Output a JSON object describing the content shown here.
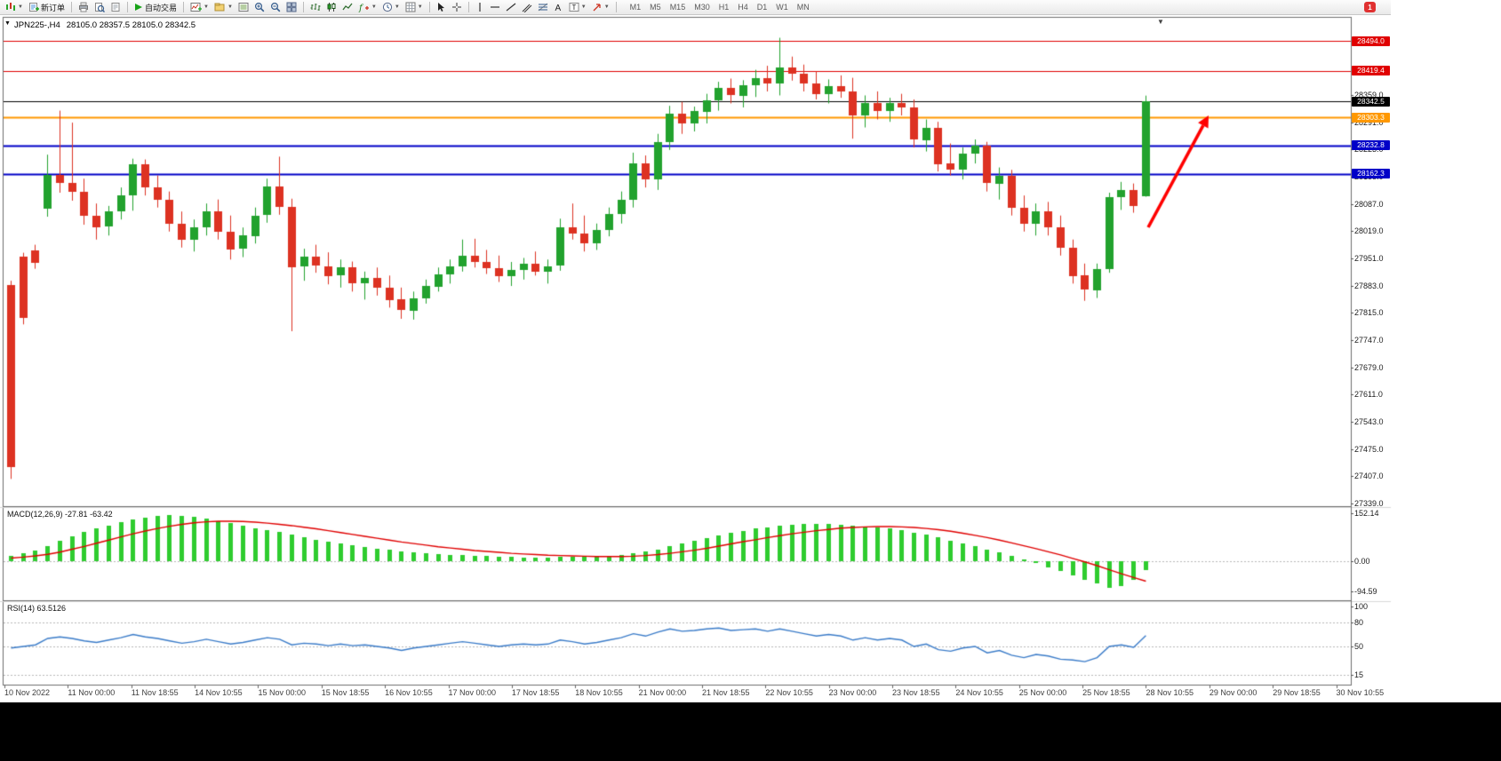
{
  "toolbar": {
    "new_order_label": "新订单",
    "auto_trading_label": "自动交易",
    "timeframes": [
      "M1",
      "M5",
      "M15",
      "M30",
      "H1",
      "H4",
      "D1",
      "W1",
      "MN"
    ],
    "notification_badge": "1",
    "icons": [
      "new-chart",
      "new-order",
      "printer",
      "print-preview",
      "page-setup",
      "auto-trading-play",
      "new-chart-window",
      "profiles",
      "data-window",
      "zoom-in",
      "zoom-out",
      "tile-windows",
      "bar-chart-view",
      "candlestick-view",
      "line-chart-view",
      "indicators",
      "periods",
      "templates",
      "cursor",
      "crosshair",
      "vertical-line",
      "horizontal-line",
      "trendline",
      "equidistant-channel",
      "fibonacci",
      "text",
      "text-label",
      "arrows"
    ]
  },
  "chart": {
    "symbol_title": "JPN225-,H4",
    "ohlc_readout": "28105.0 28357.5 28105.0 28342.5"
  },
  "chart_data": {
    "type": "candlestick",
    "symbol": "JPN225-",
    "timeframe": "H4",
    "last_ohlc": {
      "open": 28105.0,
      "high": 28357.5,
      "low": 28105.0,
      "close": 28342.5
    },
    "colors": {
      "up": "#22a22e",
      "down": "#dd3222",
      "macd_histogram": "#2fcc2f",
      "macd_signal": "#e00000",
      "rsi_line": "#3b7cc9",
      "level_red": "#e00000",
      "level_blue": "#0000c8",
      "level_orange": "#ff9800",
      "current_price_line": "#000000",
      "annotation_arrow": "#ff0000"
    },
    "price_axis": {
      "min": 27332,
      "max": 28552,
      "ticks": [
        "28359.0",
        "28291.0",
        "28223.0",
        "28155.0",
        "28087.0",
        "28019.0",
        "27951.0",
        "27883.0",
        "27815.0",
        "27747.0",
        "27679.0",
        "27611.0",
        "27543.0",
        "27475.0",
        "27407.0",
        "27339.0"
      ]
    },
    "levels": [
      {
        "label": "28494.0",
        "price": 28494.0,
        "color": "#e00000",
        "width": 1
      },
      {
        "label": "28419.4",
        "price": 28419.4,
        "color": "#e00000",
        "width": 1
      },
      {
        "label": "28342.5",
        "price": 28342.5,
        "color": "#000000",
        "width": 1
      },
      {
        "label": "28303.3",
        "price": 28303.3,
        "color": "#ff9800",
        "width": 2
      },
      {
        "label": "28232.8",
        "price": 28232.8,
        "color": "#0000c8",
        "width": 2
      },
      {
        "label": "28162.3",
        "price": 28162.3,
        "color": "#0000c8",
        "width": 2
      }
    ],
    "candles": [
      [
        27885,
        27895,
        27400,
        27430
      ],
      [
        27955,
        27965,
        27786,
        27802
      ],
      [
        27970,
        27985,
        27925,
        27938
      ],
      [
        28075,
        28210,
        28055,
        28160
      ],
      [
        28160,
        28320,
        28115,
        28140
      ],
      [
        28140,
        28290,
        28095,
        28118
      ],
      [
        28118,
        28150,
        28035,
        28058
      ],
      [
        28058,
        28088,
        27998,
        28030
      ],
      [
        28030,
        28082,
        28008,
        28068
      ],
      [
        28068,
        28128,
        28048,
        28108
      ],
      [
        28108,
        28200,
        28070,
        28185
      ],
      [
        28185,
        28198,
        28108,
        28128
      ],
      [
        28128,
        28158,
        28078,
        28098
      ],
      [
        28098,
        28118,
        28018,
        28038
      ],
      [
        28038,
        28068,
        27978,
        27998
      ],
      [
        27998,
        28048,
        27968,
        28028
      ],
      [
        28028,
        28088,
        28008,
        28068
      ],
      [
        28068,
        28098,
        27998,
        28018
      ],
      [
        28018,
        28058,
        27948,
        27974
      ],
      [
        27974,
        28028,
        27954,
        28008
      ],
      [
        28008,
        28078,
        27988,
        28058
      ],
      [
        28058,
        28150,
        28040,
        28130
      ],
      [
        28130,
        28205,
        28060,
        28080
      ],
      [
        28080,
        28100,
        27769,
        27930
      ],
      [
        27930,
        27975,
        27895,
        27955
      ],
      [
        27955,
        27985,
        27915,
        27932
      ],
      [
        27932,
        27966,
        27886,
        27908
      ],
      [
        27908,
        27948,
        27878,
        27928
      ],
      [
        27928,
        27943,
        27868,
        27888
      ],
      [
        27888,
        27918,
        27848,
        27902
      ],
      [
        27902,
        27928,
        27858,
        27878
      ],
      [
        27878,
        27908,
        27828,
        27848
      ],
      [
        27848,
        27878,
        27800,
        27822
      ],
      [
        27822,
        27868,
        27798,
        27852
      ],
      [
        27852,
        27898,
        27838,
        27882
      ],
      [
        27882,
        27928,
        27868,
        27912
      ],
      [
        27912,
        27948,
        27888,
        27932
      ],
      [
        27932,
        27998,
        27918,
        27958
      ],
      [
        27958,
        28000,
        27928,
        27942
      ],
      [
        27942,
        27972,
        27912,
        27926
      ],
      [
        27926,
        27958,
        27892,
        27906
      ],
      [
        27906,
        27942,
        27882,
        27922
      ],
      [
        27922,
        27952,
        27898,
        27938
      ],
      [
        27938,
        27968,
        27908,
        27918
      ],
      [
        27918,
        27948,
        27888,
        27932
      ],
      [
        27932,
        28050,
        27920,
        28028
      ],
      [
        28028,
        28088,
        27998,
        28012
      ],
      [
        28012,
        28058,
        27968,
        27988
      ],
      [
        27988,
        28038,
        27972,
        28022
      ],
      [
        28022,
        28078,
        28006,
        28062
      ],
      [
        28062,
        28118,
        28038,
        28098
      ],
      [
        28098,
        28215,
        28078,
        28188
      ],
      [
        28188,
        28208,
        28128,
        28148
      ],
      [
        28148,
        28262,
        28122,
        28242
      ],
      [
        28242,
        28332,
        28222,
        28312
      ],
      [
        28312,
        28342,
        28262,
        28288
      ],
      [
        28288,
        28330,
        28268,
        28318
      ],
      [
        28318,
        28362,
        28288,
        28346
      ],
      [
        28346,
        28392,
        28320,
        28376
      ],
      [
        28376,
        28400,
        28338,
        28358
      ],
      [
        28358,
        28396,
        28328,
        28384
      ],
      [
        28384,
        28422,
        28354,
        28402
      ],
      [
        28402,
        28432,
        28368,
        28388
      ],
      [
        28388,
        28502,
        28358,
        28428
      ],
      [
        28428,
        28455,
        28395,
        28412
      ],
      [
        28412,
        28435,
        28368,
        28388
      ],
      [
        28388,
        28418,
        28348,
        28362
      ],
      [
        28362,
        28398,
        28338,
        28382
      ],
      [
        28382,
        28408,
        28352,
        28368
      ],
      [
        28368,
        28402,
        28250,
        28308
      ],
      [
        28308,
        28358,
        28278,
        28338
      ],
      [
        28338,
        28368,
        28298,
        28318
      ],
      [
        28318,
        28352,
        28292,
        28338
      ],
      [
        28338,
        28362,
        28308,
        28328
      ],
      [
        28328,
        28348,
        28228,
        28248
      ],
      [
        28248,
        28298,
        28218,
        28278
      ],
      [
        28278,
        28292,
        28168,
        28188
      ],
      [
        28188,
        28238,
        28158,
        28172
      ],
      [
        28172,
        28228,
        28148,
        28212
      ],
      [
        28212,
        28248,
        28188,
        28232
      ],
      [
        28232,
        28242,
        28118,
        28138
      ],
      [
        28138,
        28178,
        28098,
        28158
      ],
      [
        28158,
        28172,
        28058,
        28078
      ],
      [
        28078,
        28108,
        28018,
        28038
      ],
      [
        28038,
        28088,
        28008,
        28068
      ],
      [
        28068,
        28092,
        28008,
        28028
      ],
      [
        28028,
        28058,
        27958,
        27978
      ],
      [
        27978,
        27998,
        27888,
        27908
      ],
      [
        27908,
        27938,
        27845,
        27872
      ],
      [
        27872,
        27938,
        27852,
        27925
      ],
      [
        27925,
        28115,
        27915,
        28105
      ],
      [
        28105,
        28142,
        28072,
        28122
      ],
      [
        28122,
        28138,
        28065,
        28082
      ],
      [
        28105,
        28357.5,
        28105,
        28342.5
      ]
    ],
    "macd": {
      "label": "MACD(12,26,9)",
      "main_value": "-27.81",
      "signal_value": "-63.42",
      "ticks": [
        {
          "label": "152.14",
          "value": 152.14
        },
        {
          "label": "0.00",
          "value": 0
        },
        {
          "label": "-94.59",
          "value": -94.59
        }
      ],
      "histogram": [
        18,
        25,
        33,
        48,
        65,
        80,
        93,
        104,
        114,
        124,
        132,
        139,
        144,
        146,
        145,
        141,
        135,
        128,
        120,
        112,
        105,
        99,
        92,
        84,
        76,
        69,
        62,
        56,
        50,
        45,
        40,
        36,
        32,
        28,
        25,
        23,
        21,
        20,
        18,
        16,
        14,
        13,
        12,
        11,
        11,
        13,
        14,
        13,
        13,
        15,
        19,
        25,
        30,
        38,
        48,
        56,
        64,
        73,
        82,
        89,
        96,
        103,
        108,
        113,
        116,
        118,
        119,
        119,
        117,
        114,
        111,
        107,
        103,
        98,
        91,
        84,
        75,
        65,
        56,
        48,
        38,
        28,
        17,
        5,
        -7,
        -19,
        -31,
        -44,
        -58,
        -70,
        -85,
        -78,
        -58,
        -27.81
      ],
      "signal": [
        10,
        13,
        17,
        22,
        29,
        38,
        47,
        57,
        67,
        77,
        87,
        96,
        104,
        111,
        117,
        122,
        125,
        127,
        127,
        126,
        124,
        121,
        117,
        113,
        108,
        103,
        97,
        91,
        85,
        79,
        73,
        67,
        61,
        56,
        51,
        46,
        42,
        38,
        34,
        31,
        28,
        25,
        23,
        21,
        19,
        18,
        17,
        16,
        15,
        15,
        15,
        16,
        18,
        21,
        25,
        30,
        35,
        41,
        48,
        55,
        62,
        68,
        75,
        81,
        87,
        92,
        97,
        101,
        105,
        107,
        109,
        110,
        110,
        109,
        107,
        104,
        100,
        95,
        89,
        82,
        75,
        67,
        58,
        49,
        40,
        30,
        20,
        9,
        -2,
        -14,
        -27,
        -40,
        -52,
        -63.42
      ]
    },
    "rsi": {
      "label": "RSI(14)",
      "value": "63.5126",
      "ticks": [
        {
          "label": "100",
          "value": 100
        },
        {
          "label": "80",
          "value": 80
        },
        {
          "label": "50",
          "value": 50
        },
        {
          "label": "15",
          "value": 15
        }
      ],
      "levels": [
        80,
        50,
        15
      ],
      "values": [
        48,
        50,
        52,
        60,
        62,
        60,
        57,
        55,
        58,
        61,
        65,
        62,
        60,
        57,
        54,
        56,
        59,
        56,
        53,
        55,
        58,
        61,
        59,
        52,
        54,
        53,
        51,
        53,
        51,
        52,
        50,
        48,
        45,
        48,
        50,
        52,
        54,
        56,
        54,
        52,
        50,
        52,
        53,
        52,
        53,
        58,
        56,
        53,
        55,
        58,
        61,
        66,
        63,
        68,
        72,
        69,
        70,
        72,
        73,
        70,
        71,
        72,
        69,
        72,
        69,
        66,
        63,
        65,
        63,
        58,
        61,
        58,
        60,
        58,
        50,
        53,
        46,
        44,
        48,
        50,
        42,
        45,
        39,
        36,
        40,
        38,
        34,
        33,
        31,
        36,
        50,
        52,
        49,
        63.51
      ]
    },
    "time_axis": {
      "labels": [
        "10 Nov 2022",
        "11 Nov 00:00",
        "11 Nov 18:55",
        "14 Nov 10:55",
        "15 Nov 00:00",
        "15 Nov 18:55",
        "16 Nov 10:55",
        "17 Nov 00:00",
        "17 Nov 18:55",
        "18 Nov 10:55",
        "21 Nov 00:00",
        "21 Nov 18:55",
        "22 Nov 10:55",
        "23 Nov 00:00",
        "23 Nov 18:55",
        "24 Nov 10:55",
        "25 Nov 00:00",
        "25 Nov 18:55",
        "28 Nov 10:55",
        "29 Nov 00:00",
        "29 Nov 18:55",
        "30 Nov 10:55"
      ]
    },
    "arrow_annotation": {
      "from": [
        1292,
        256
      ],
      "to": [
        1360,
        130
      ],
      "color": "#ff0000"
    }
  }
}
